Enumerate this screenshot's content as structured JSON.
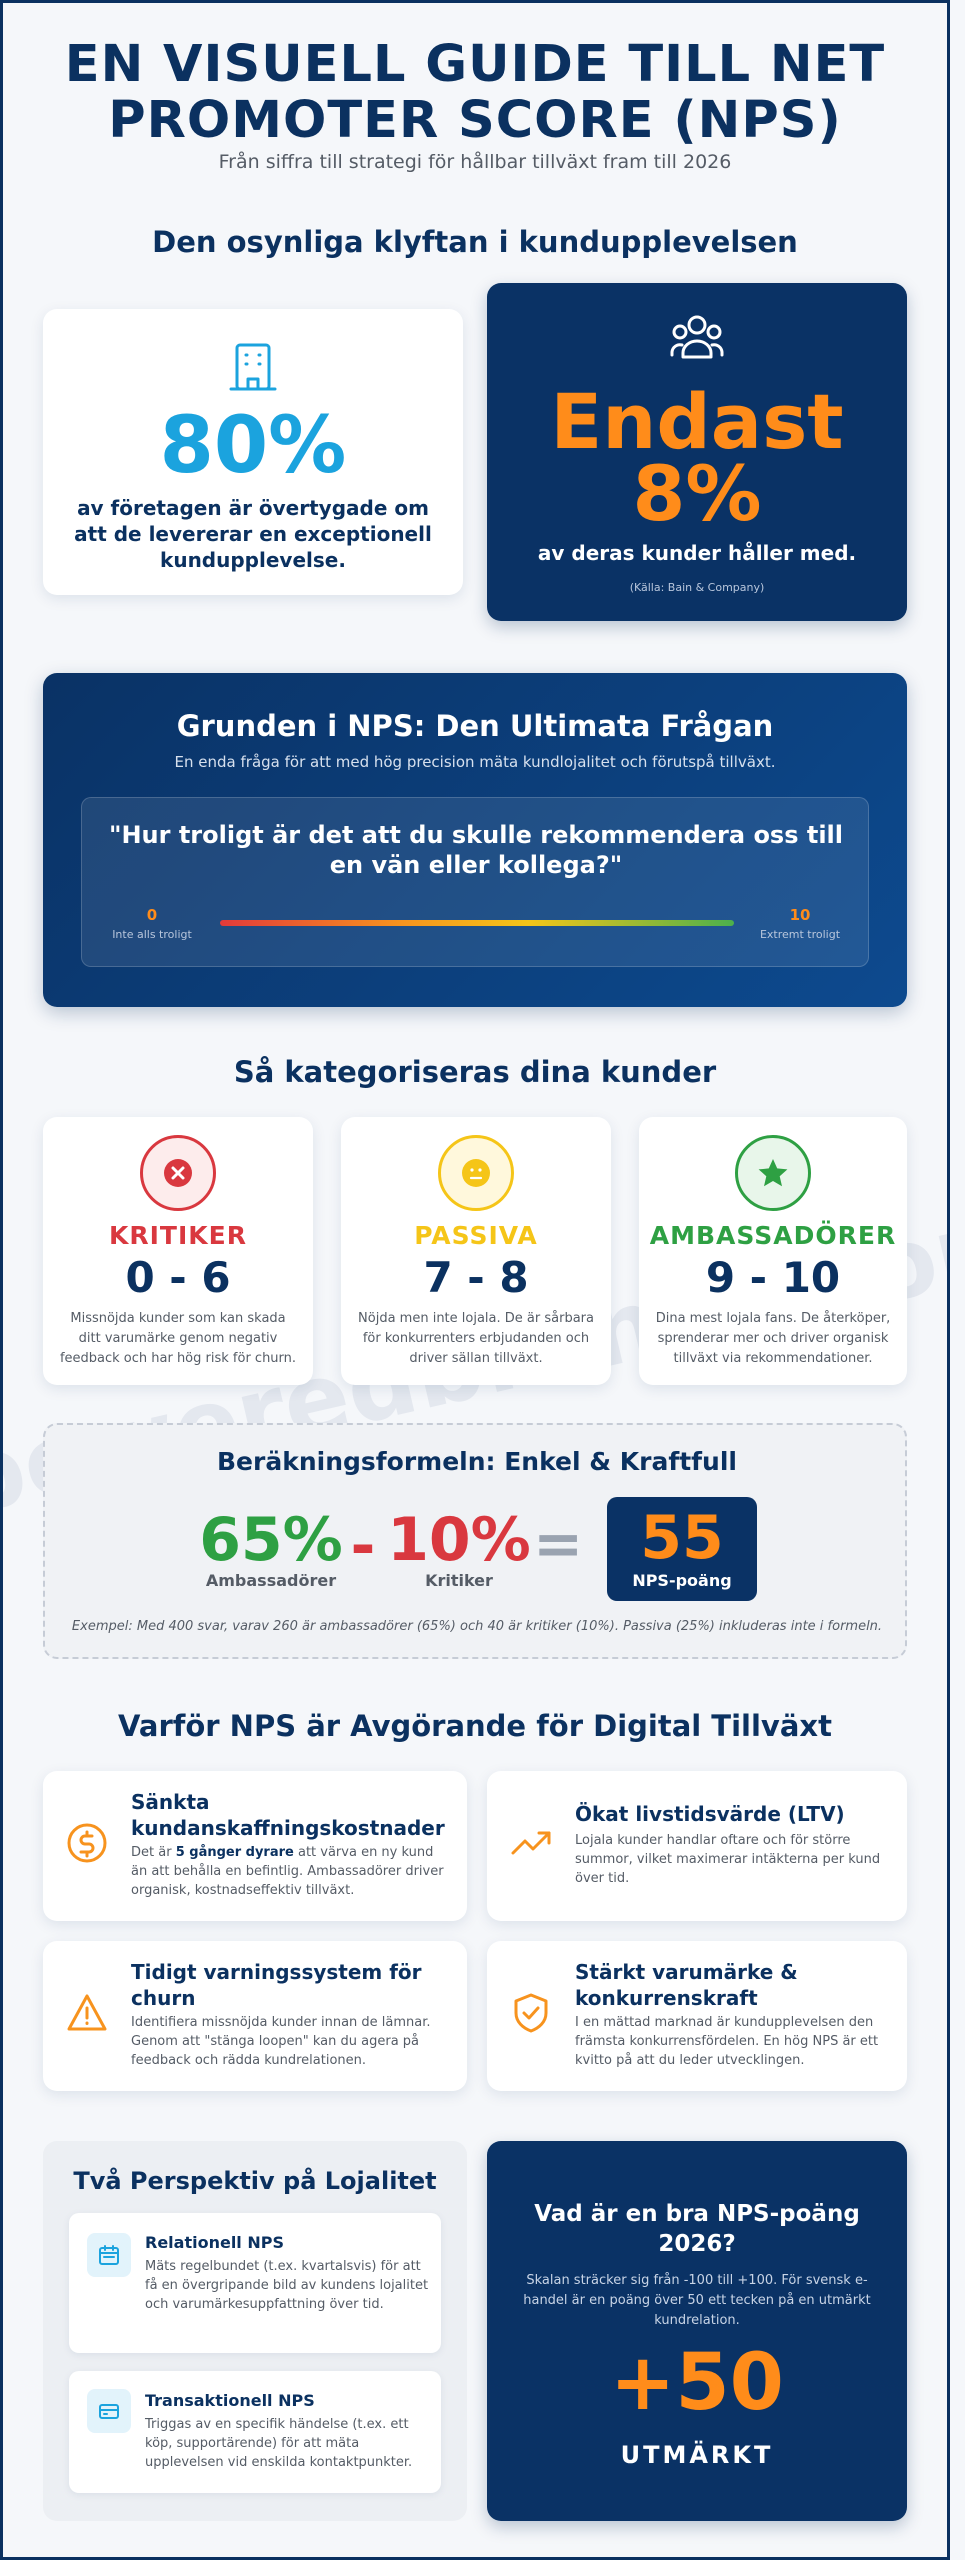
{
  "header": {
    "title_line1": "EN VISUELL GUIDE TILL NET",
    "title_line2": "PROMOTER SCORE (NPS)",
    "subtitle": "Från siffra till strategi för hållbar tillväxt fram till 2026"
  },
  "gap": {
    "title": "Den osynliga klyftan i kundupplevelsen",
    "left": {
      "icon": "building-icon",
      "value": "80%",
      "text": "av företagen är övertygade om att de levererar en exceptionell kundupplevelse."
    },
    "right": {
      "icon": "users-icon",
      "value_line1": "Endast",
      "value_line2": "8%",
      "text": "av deras kunder håller med.",
      "source": "(Källa: Bain & Company)"
    }
  },
  "question": {
    "title": "Grunden i NPS: Den Ultimata Frågan",
    "subtitle": "En enda fråga för att med hög precision mäta kundlojalitet och förutspå tillväxt.",
    "quote": "\"Hur troligt är det att du skulle rekommendera oss till en vän eller kollega?\"",
    "scale_min": "0",
    "scale_min_label": "Inte alls troligt",
    "scale_max": "10",
    "scale_max_label": "Extremt troligt"
  },
  "categories": {
    "title": "Så kategoriseras dina kunder",
    "items": [
      {
        "icon": "x-icon",
        "name": "KRITIKER",
        "range": "0 - 6",
        "desc": "Missnöjda kunder som kan skada ditt varumärke genom negativ feedback och har hög risk för churn.",
        "color": "#d9383f"
      },
      {
        "icon": "neutral-face-icon",
        "name": "PASSIVA",
        "range": "7 - 8",
        "desc": "Nöjda men inte lojala. De är sårbara för konkurrenters erbjudanden och driver sällan tillväxt.",
        "color": "#f5c518"
      },
      {
        "icon": "star-icon",
        "name": "AMBASSADÖRER",
        "range": "9 - 10",
        "desc": "Dina mest lojala fans. De återköper, sprenderar mer och driver organisk tillväxt via rekommendationer.",
        "color": "#2ea043"
      }
    ],
    "watermark": "poweredbrands.com"
  },
  "formula": {
    "title": "Beräkningsformeln: Enkel & Kraftfull",
    "promoters_value": "65%",
    "promoters_label": "Ambassadörer",
    "minus": "-",
    "detractors_value": "10%",
    "detractors_label": "Kritiker",
    "equals": "=",
    "result_value": "55",
    "result_label": "NPS-poäng",
    "example": "Exempel: Med 400 svar, varav 260 är ambassadörer (65%) och 40 är kritiker (10%). Passiva (25%) inkluderas inte i formeln."
  },
  "why": {
    "title": "Varför NPS är Avgörande för Digital Tillväxt",
    "items": [
      {
        "icon": "dollar-icon",
        "title": "Sänkta kundanskaffningskostnader",
        "text_pre": "Det är ",
        "text_bold": "5 gånger dyrare",
        "text_post": " att värva en ny kund än att behålla en befintlig. Ambassadörer driver organisk, kostnadseffektiv tillväxt."
      },
      {
        "icon": "trend-up-icon",
        "title": "Ökat livstidsvärde (LTV)",
        "text_pre": "Lojala kunder handlar oftare och för större summor, vilket maximerar intäkterna per kund över tid.",
        "text_bold": "",
        "text_post": ""
      },
      {
        "icon": "warning-icon",
        "title": "Tidigt varningssystem för churn",
        "text_pre": "Identifiera missnöjda kunder innan de lämnar. Genom att \"stänga loopen\" kan du agera på feedback och rädda kundrelationen.",
        "text_bold": "",
        "text_post": ""
      },
      {
        "icon": "shield-check-icon",
        "title": "Stärkt varumärke & konkurrenskraft",
        "text_pre": "I en mättad marknad är kundupplevelsen den främsta konkurrensfördelen. En hög NPS är ett kvitto på att du leder utvecklingen.",
        "text_bold": "",
        "text_post": ""
      }
    ]
  },
  "perspectives": {
    "title": "Två Perspektiv på Lojalitet",
    "items": [
      {
        "icon": "calendar-icon",
        "title": "Relationell NPS",
        "text": "Mäts regelbundet (t.ex. kvartalsvis) för att få en övergripande bild av kundens lojalitet och varumärkesuppfattning över tid."
      },
      {
        "icon": "card-icon",
        "title": "Transaktionell NPS",
        "text": "Triggas av en specifik händelse (t.ex. ett köp, supportärende) för att mäta upplevelsen vid enskilda kontaktpunkter."
      }
    ]
  },
  "benchmark": {
    "title": "Vad är en bra NPS-poäng 2026?",
    "text": "Skalan sträcker sig från -100 till +100. För svensk e-handel är en poäng över 50 ett tecken på en utmärkt kundrelation.",
    "value": "+50",
    "label": "UTMÄRKT"
  },
  "colors": {
    "navy": "#0a3265",
    "orange": "#ff8c1a",
    "cyan": "#1ba3de",
    "red": "#d9383f",
    "yellow": "#f5c518",
    "green": "#2ea043"
  }
}
